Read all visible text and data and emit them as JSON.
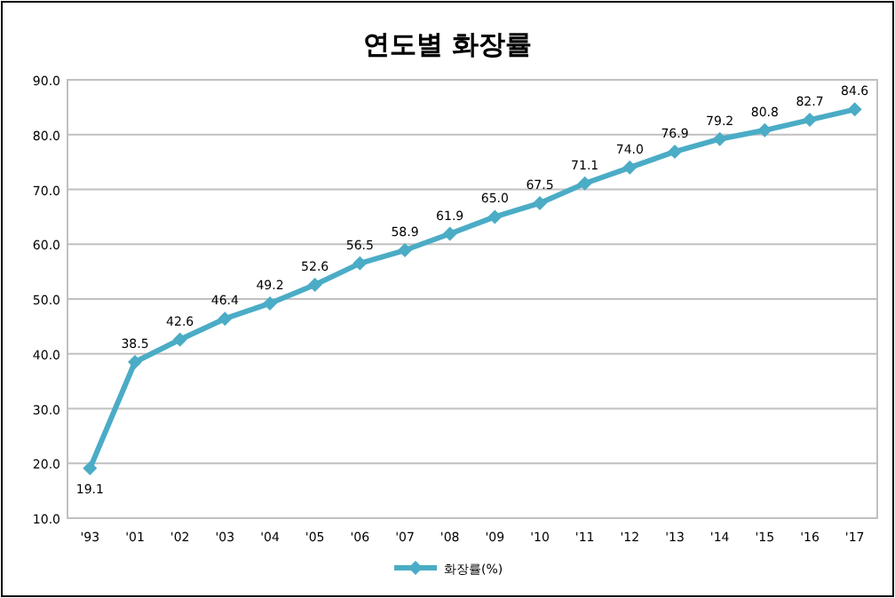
{
  "chart_data": {
    "type": "line",
    "title": "연도별 화장률",
    "categories": [
      "'93",
      "'01",
      "'02",
      "'03",
      "'04",
      "'05",
      "'06",
      "'07",
      "'08",
      "'09",
      "'10",
      "'11",
      "'12",
      "'13",
      "'14",
      "'15",
      "'16",
      "'17"
    ],
    "series": [
      {
        "name": "화장률(%)",
        "color": "#4bacc6",
        "values": [
          19.1,
          38.5,
          42.6,
          46.4,
          49.2,
          52.6,
          56.5,
          58.9,
          61.9,
          65.0,
          67.5,
          71.1,
          74.0,
          76.9,
          79.2,
          80.8,
          82.7,
          84.6
        ],
        "value_labels": [
          "19.1",
          "38.5",
          "42.6",
          "46.4",
          "49.2",
          "52.6",
          "56.5",
          "58.9",
          "61.9",
          "65.0",
          "67.5",
          "71.1",
          "74.0",
          "76.9",
          "79.2",
          "80.8",
          "82.7",
          "84.6"
        ]
      }
    ],
    "ylim": [
      10,
      90
    ],
    "yticks": [
      {
        "value": 10,
        "label": "10.0"
      },
      {
        "value": 20,
        "label": "20.0"
      },
      {
        "value": 30,
        "label": "30.0"
      },
      {
        "value": 40,
        "label": "40.0"
      },
      {
        "value": 50,
        "label": "50.0"
      },
      {
        "value": 60,
        "label": "60.0"
      },
      {
        "value": 70,
        "label": "70.0"
      },
      {
        "value": 80,
        "label": "80.0"
      },
      {
        "value": 90,
        "label": "90.0"
      }
    ],
    "grid": "y",
    "legend": "bottom",
    "marker": "diamond",
    "line_style": "solid"
  }
}
